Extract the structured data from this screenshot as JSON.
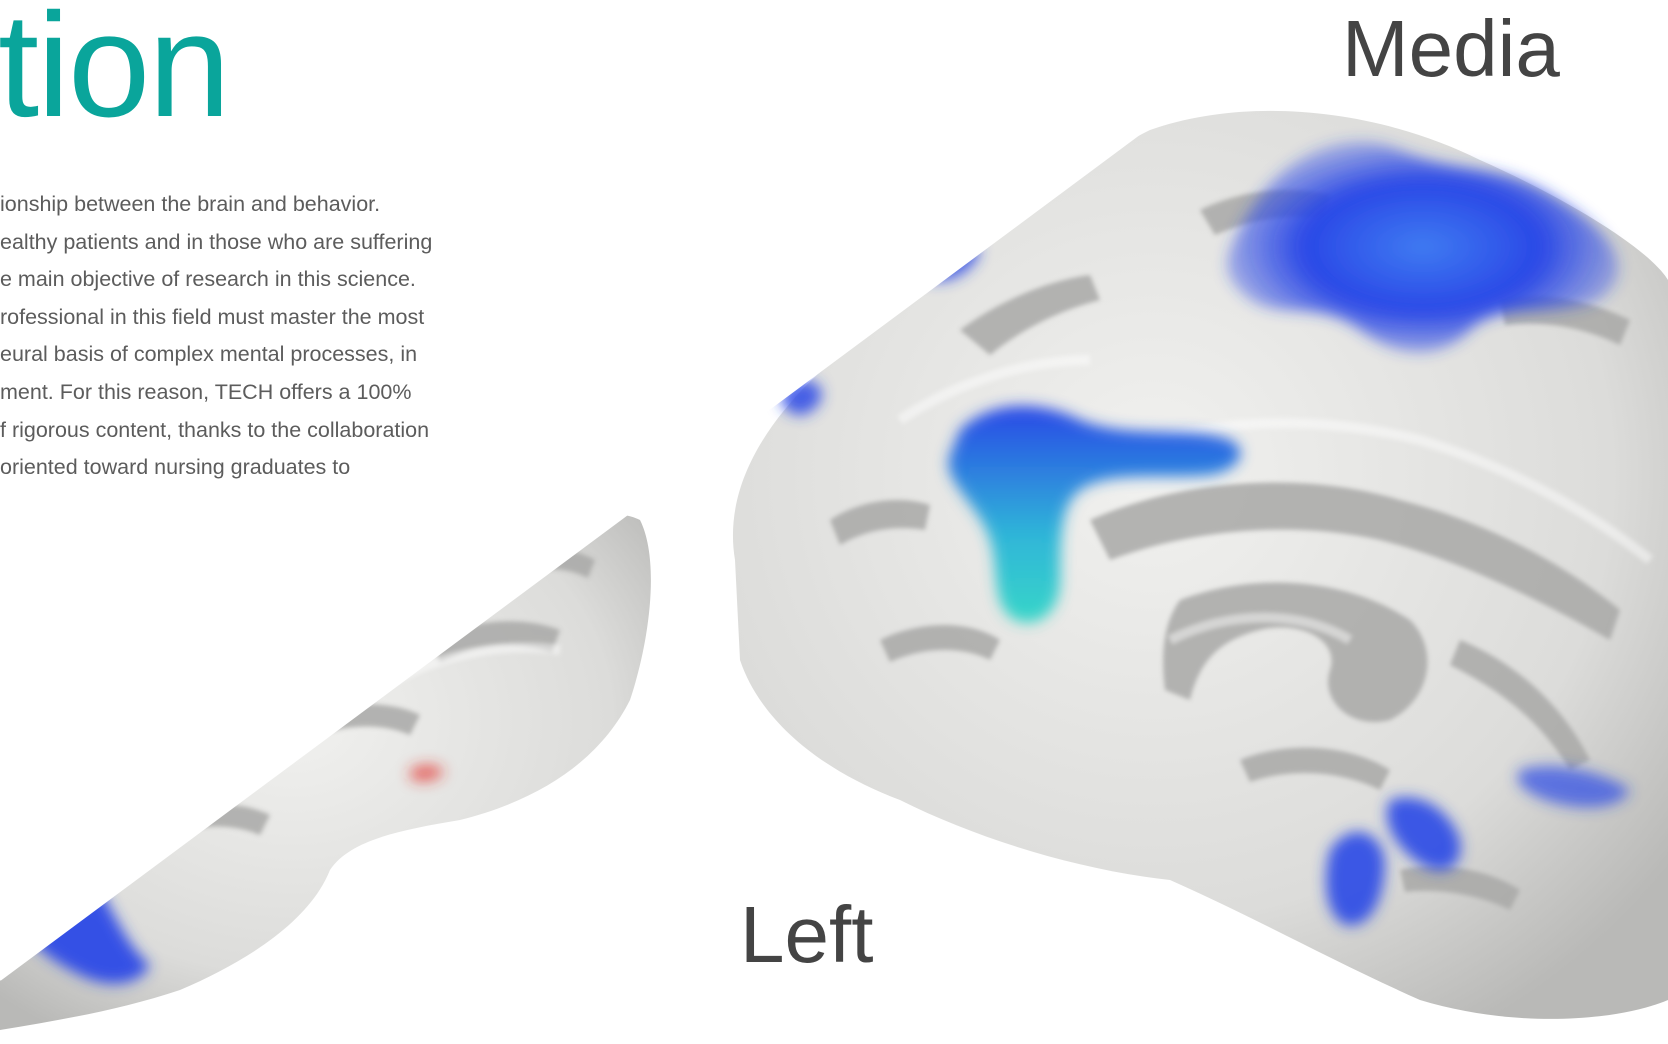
{
  "page": {
    "title": "tion",
    "intro_lines": [
      "ionship between the brain and behavior.",
      "ealthy patients and in those who are suffering",
      "e main objective of research in this science.",
      "rofessional in this field must master the most",
      "eural basis of complex mental processes, in",
      "ment. For this reason, TECH offers a 100%",
      "f rigorous content, thanks to the collaboration",
      "oriented toward nursing graduates to"
    ]
  },
  "figure": {
    "view_left_label": "Left",
    "view_medial_label": "Media",
    "image_subject": "brain-surface-render",
    "colors": {
      "title_accent": "#0aa59b",
      "cortex_surface": "#e6e6e4",
      "sulcus_shade": "#a8a8a8",
      "activation_blue": "#2a48e6",
      "activation_cyan": "#38d6c8",
      "activation_red": "#e2312a",
      "label_gray": "#444444"
    }
  }
}
